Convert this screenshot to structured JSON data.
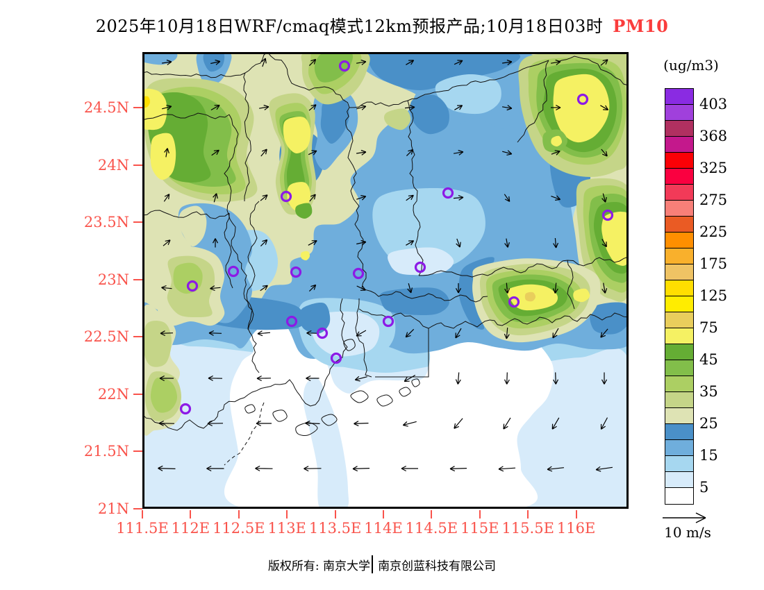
{
  "title": {
    "text": "2025年10月18日WRF/cmaq模式12km预报产品;10月18日03时",
    "species": "PM10",
    "species_color": "#FA3C3C"
  },
  "colorbar": {
    "unit": "(ug/m3)",
    "labels": [
      "403",
      "368",
      "325",
      "275",
      "225",
      "175",
      "125",
      "75",
      "45",
      "35",
      "25",
      "15",
      "5"
    ],
    "colors": [
      "#8A2BE2",
      "#A040DC",
      "#B03060",
      "#C4188C",
      "#FB0006",
      "#FA0040",
      "#F23A58",
      "#F87F78",
      "#EA5B24",
      "#FF8F00",
      "#F9B02C",
      "#EFC364",
      "#FFDE00",
      "#FFED00",
      "#E9CE5C",
      "#F5F163",
      "#65AD34",
      "#82BE4A",
      "#ACCF63",
      "#C5D588",
      "#DEE3B4",
      "#4A90C8",
      "#6FAEDC",
      "#A6D7F0",
      "#D7EBFA",
      "#FFFFFF"
    ]
  },
  "axes": {
    "lat_labels": [
      "24.5N",
      "24N",
      "23.5N",
      "23N",
      "22.5N",
      "22N",
      "21.5N",
      "21N"
    ],
    "lon_labels": [
      "111.5E",
      "112E",
      "112.5E",
      "113E",
      "113.5E",
      "114E",
      "114.5E",
      "115E",
      "115.5E",
      "116E"
    ],
    "label_color": "#F9534B"
  },
  "wind_legend": {
    "label": "10 m/s"
  },
  "footer": {
    "owner": "版权所有: 南京大学",
    "company": "南京创蓝科技有限公司"
  },
  "map": {
    "marker_color": "#8C1AE6",
    "boundary_color": "#111111",
    "markers": [
      [
        291,
        20
      ],
      [
        634,
        68
      ],
      [
        207,
        208
      ],
      [
        440,
        203
      ],
      [
        670,
        235
      ],
      [
        131,
        316
      ],
      [
        221,
        317
      ],
      [
        311,
        319
      ],
      [
        400,
        310
      ],
      [
        72,
        337
      ],
      [
        535,
        360
      ],
      [
        354,
        388
      ],
      [
        215,
        388
      ],
      [
        259,
        405
      ],
      [
        279,
        441
      ],
      [
        62,
        514
      ]
    ],
    "arrows": [
      [
        35,
        15,
        8,
        14
      ],
      [
        105,
        15,
        12,
        14
      ],
      [
        175,
        15,
        70,
        13
      ],
      [
        245,
        15,
        45,
        13
      ],
      [
        315,
        15,
        10,
        14
      ],
      [
        385,
        15,
        30,
        13
      ],
      [
        455,
        15,
        25,
        13
      ],
      [
        525,
        15,
        8,
        14
      ],
      [
        595,
        15,
        10,
        14
      ],
      [
        665,
        15,
        40,
        13
      ],
      [
        35,
        80,
        15,
        14
      ],
      [
        105,
        80,
        30,
        14
      ],
      [
        175,
        80,
        10,
        14
      ],
      [
        245,
        80,
        40,
        13
      ],
      [
        315,
        80,
        15,
        14
      ],
      [
        385,
        80,
        5,
        14
      ],
      [
        455,
        80,
        30,
        13
      ],
      [
        525,
        80,
        -10,
        14
      ],
      [
        595,
        80,
        0,
        14
      ],
      [
        665,
        80,
        -30,
        13
      ],
      [
        35,
        145,
        80,
        13
      ],
      [
        105,
        145,
        35,
        13
      ],
      [
        175,
        145,
        50,
        13
      ],
      [
        245,
        145,
        25,
        13
      ],
      [
        315,
        145,
        8,
        14
      ],
      [
        385,
        145,
        45,
        13
      ],
      [
        455,
        145,
        10,
        14
      ],
      [
        525,
        145,
        -15,
        14
      ],
      [
        595,
        145,
        20,
        13
      ],
      [
        665,
        145,
        -50,
        13
      ],
      [
        35,
        210,
        55,
        13
      ],
      [
        105,
        210,
        75,
        13
      ],
      [
        175,
        210,
        40,
        13
      ],
      [
        245,
        210,
        50,
        13
      ],
      [
        315,
        210,
        18,
        14
      ],
      [
        385,
        210,
        35,
        13
      ],
      [
        455,
        210,
        5,
        14
      ],
      [
        525,
        210,
        -55,
        13
      ],
      [
        595,
        210,
        -20,
        14
      ],
      [
        665,
        210,
        -75,
        13
      ],
      [
        35,
        275,
        40,
        13
      ],
      [
        105,
        275,
        90,
        13
      ],
      [
        175,
        275,
        45,
        13
      ],
      [
        245,
        275,
        28,
        14
      ],
      [
        315,
        275,
        12,
        14
      ],
      [
        385,
        275,
        30,
        13
      ],
      [
        455,
        275,
        -70,
        13
      ],
      [
        525,
        275,
        -80,
        13
      ],
      [
        595,
        275,
        -85,
        14
      ],
      [
        665,
        275,
        -60,
        13
      ],
      [
        35,
        340,
        175,
        15
      ],
      [
        105,
        340,
        185,
        15
      ],
      [
        175,
        340,
        35,
        13
      ],
      [
        245,
        340,
        45,
        13
      ],
      [
        315,
        340,
        -25,
        14
      ],
      [
        385,
        340,
        -75,
        14
      ],
      [
        455,
        340,
        -90,
        14
      ],
      [
        525,
        340,
        -85,
        15
      ],
      [
        595,
        340,
        -95,
        15
      ],
      [
        665,
        340,
        -80,
        15
      ],
      [
        35,
        405,
        182,
        18
      ],
      [
        105,
        405,
        178,
        18
      ],
      [
        175,
        405,
        185,
        18
      ],
      [
        245,
        405,
        178,
        17
      ],
      [
        315,
        405,
        -150,
        16
      ],
      [
        385,
        405,
        -135,
        16
      ],
      [
        455,
        405,
        -120,
        16
      ],
      [
        525,
        405,
        -95,
        16
      ],
      [
        595,
        405,
        -120,
        16
      ],
      [
        665,
        405,
        -130,
        16
      ],
      [
        35,
        470,
        180,
        20
      ],
      [
        105,
        470,
        179,
        20
      ],
      [
        175,
        470,
        181,
        20
      ],
      [
        245,
        470,
        180,
        19
      ],
      [
        315,
        470,
        -165,
        18
      ],
      [
        385,
        470,
        -150,
        18
      ],
      [
        455,
        470,
        -95,
        17
      ],
      [
        525,
        470,
        -92,
        17
      ],
      [
        595,
        470,
        -88,
        17
      ],
      [
        665,
        470,
        -90,
        17
      ],
      [
        35,
        535,
        179,
        22
      ],
      [
        105,
        535,
        181,
        22
      ],
      [
        175,
        535,
        180,
        22
      ],
      [
        245,
        535,
        178,
        21
      ],
      [
        315,
        535,
        -178,
        21
      ],
      [
        385,
        535,
        -165,
        20
      ],
      [
        455,
        535,
        -130,
        19
      ],
      [
        525,
        535,
        -122,
        19
      ],
      [
        595,
        535,
        -120,
        19
      ],
      [
        665,
        535,
        -118,
        19
      ],
      [
        35,
        600,
        178,
        25
      ],
      [
        105,
        600,
        180,
        25
      ],
      [
        175,
        600,
        179,
        25
      ],
      [
        245,
        600,
        181,
        25
      ],
      [
        315,
        600,
        182,
        24
      ],
      [
        385,
        600,
        180,
        24
      ],
      [
        455,
        600,
        -178,
        24
      ],
      [
        525,
        600,
        -176,
        24
      ],
      [
        595,
        600,
        -174,
        24
      ],
      [
        665,
        600,
        -172,
        24
      ]
    ]
  }
}
